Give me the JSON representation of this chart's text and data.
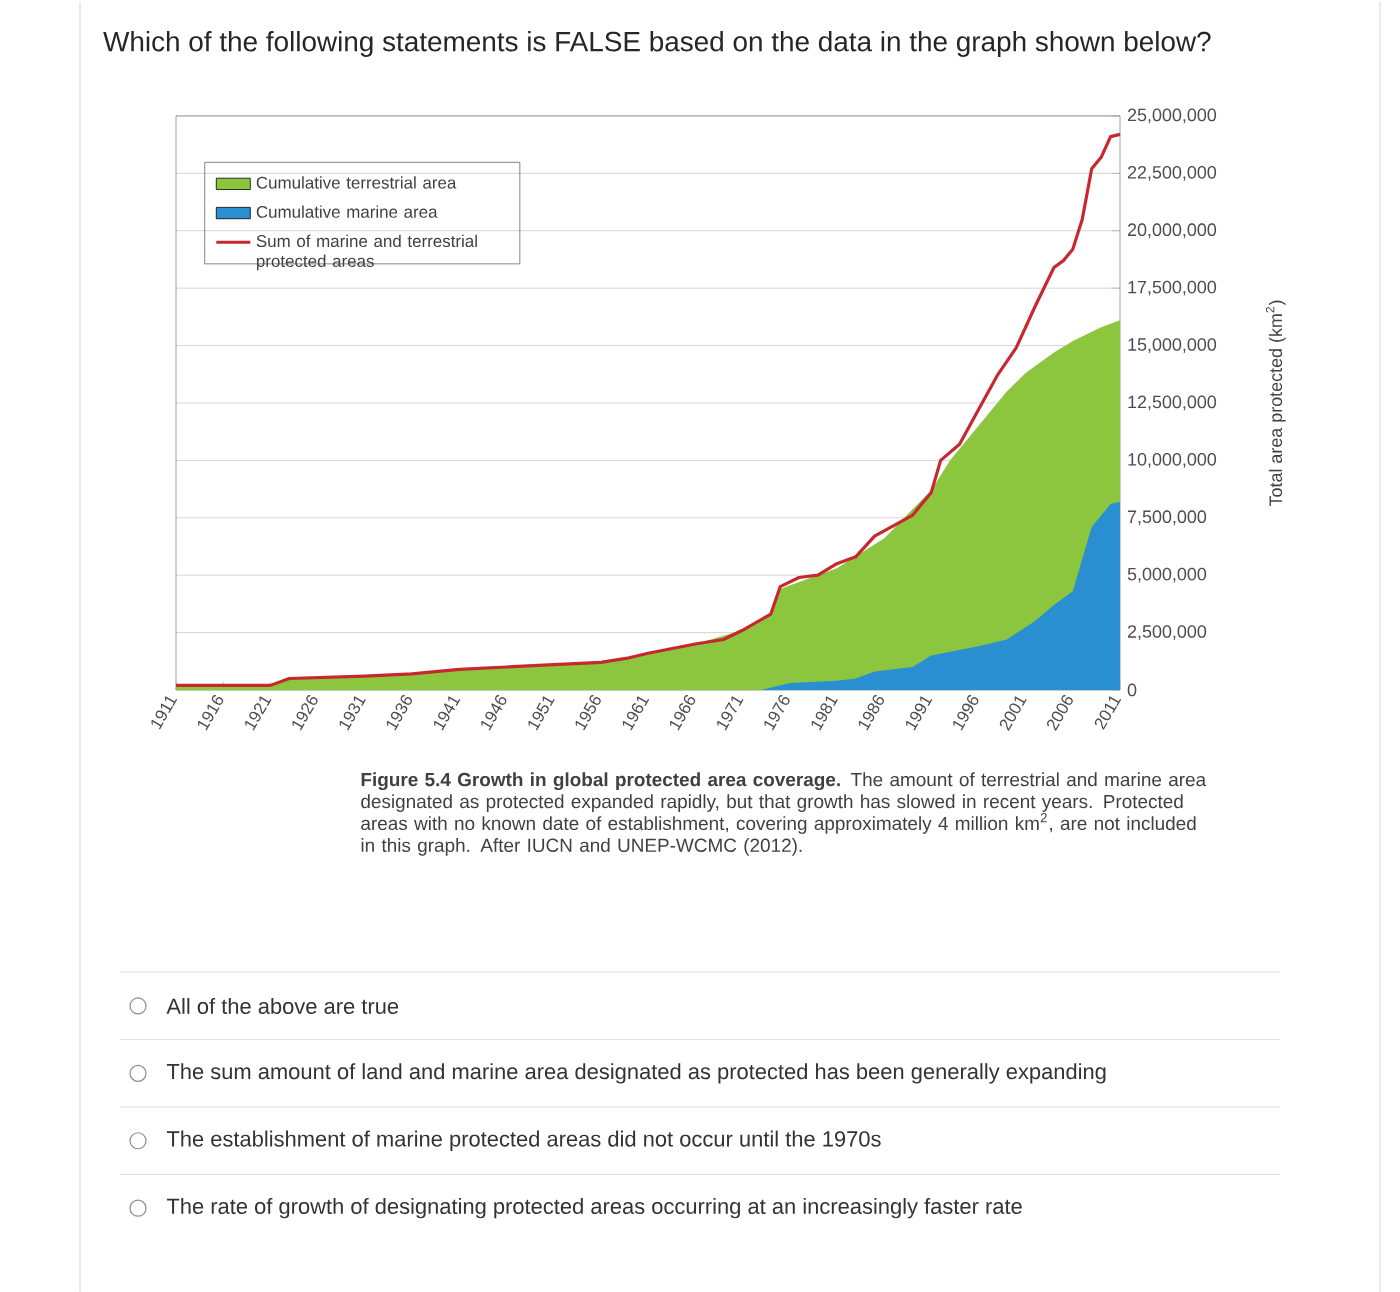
{
  "chart_data": {
    "type": "area",
    "title": "Which of the following statements is FALSE based on the data in the graph shown below?",
    "ylabel": "Total area protected (km$^{2}$)",
    "xlim": [
      1911,
      2011
    ],
    "xticks": [
      1911,
      1916,
      1921,
      1926,
      1931,
      1936,
      1941,
      1946,
      1951,
      1956,
      1961,
      1966,
      1971,
      1976,
      1981,
      1986,
      1991,
      1996,
      2001,
      2006,
      2011
    ],
    "ylim": [
      0,
      25000000
    ],
    "yticks": [
      0,
      {
        "value": 2500000,
        "label": "2,500,000"
      },
      {
        "value": 5000000,
        "label": "5,000,000"
      },
      {
        "value": 7500000,
        "label": "7,500,000"
      },
      {
        "value": 10000000,
        "label": "10,000,000"
      },
      {
        "value": 12500000,
        "label": "12,500,000"
      },
      {
        "value": 15000000,
        "label": "15,000,000"
      },
      {
        "value": 17500000,
        "label": "17,500,000"
      },
      {
        "value": 20000000,
        "label": "20,000,000"
      },
      {
        "value": 22500000,
        "label": "22,500,000"
      },
      {
        "value": 25000000,
        "label": "25,000,000"
      }
    ],
    "grid": "y",
    "legend": "top left",
    "series": [
      {
        "name": "Cumulative terrestrial area",
        "type": "area",
        "color": "#8cc63f",
        "x": [
          1911,
          1921,
          1923,
          1931,
          1941,
          1951,
          1956,
          1961,
          1966,
          1971,
          1974,
          1975,
          1977,
          1981,
          1986,
          1991,
          1993,
          1996,
          1999,
          2001,
          2004,
          2006,
          2009,
          2011
        ],
        "values": [
          200000,
          200000,
          500000,
          600000,
          900000,
          1100000,
          1200000,
          1600000,
          2000000,
          2600000,
          3300000,
          4400000,
          4700000,
          5300000,
          6600000,
          8700000,
          10000000,
          11500000,
          13000000,
          13800000,
          14700000,
          15200000,
          15800000,
          16100000
        ]
      },
      {
        "name": "Cumulative marine area",
        "type": "area",
        "color": "#2a8fd0",
        "x": [
          1973,
          1976,
          1981,
          1983,
          1985,
          1989,
          1991,
          1996,
          1999,
          2002,
          2004,
          2006,
          2007,
          2008,
          2009,
          2010,
          2011
        ],
        "values": [
          0,
          300000,
          400000,
          500000,
          800000,
          1000000,
          1500000,
          1900000,
          2200000,
          3000000,
          3700000,
          4300000,
          5700000,
          7100000,
          7600000,
          8100000,
          8200000
        ]
      },
      {
        "name": "Sum of marine and terrestrial protected areas",
        "type": "line",
        "color": "#c8282d",
        "x": [
          1911,
          1921,
          1923,
          1931,
          1936,
          1941,
          1946,
          1951,
          1956,
          1959,
          1961,
          1966,
          1969,
          1971,
          1974,
          1975,
          1977,
          1979,
          1981,
          1983,
          1985,
          1989,
          1991,
          1992,
          1994,
          1996,
          1998,
          2000,
          2002,
          2004,
          2005,
          2006,
          2007,
          2008,
          2009,
          2010,
          2011
        ],
        "values": [
          200000,
          200000,
          500000,
          600000,
          700000,
          900000,
          1000000,
          1100000,
          1200000,
          1400000,
          1600000,
          2000000,
          2200000,
          2600000,
          3300000,
          4500000,
          4900000,
          5000000,
          5500000,
          5800000,
          6700000,
          7600000,
          8600000,
          10000000,
          10700000,
          12200000,
          13700000,
          14900000,
          16700000,
          18400000,
          18700000,
          19200000,
          20500000,
          22700000,
          23200000,
          24100000,
          24200000
        ]
      }
    ],
    "annotations": [
      "**Figure 5.4 Growth in global protected area coverage.** The amount of terrestrial and marine area designated as protected expanded rapidly, but that growth has slowed in recent years. Protected areas with no known date of establishment, covering approximately 4 million km$^{2}$, are not included in this graph. After IUCN and UNEP-WCMC (2012).",
      "All of the above are true",
      "The sum amount of land and marine area designated as protected has been generally expanding",
      "The establishment of marine protected areas did not occur until the 1970s",
      "The rate of growth of designating protected areas occurring at an increasingly faster rate"
    ]
  }
}
